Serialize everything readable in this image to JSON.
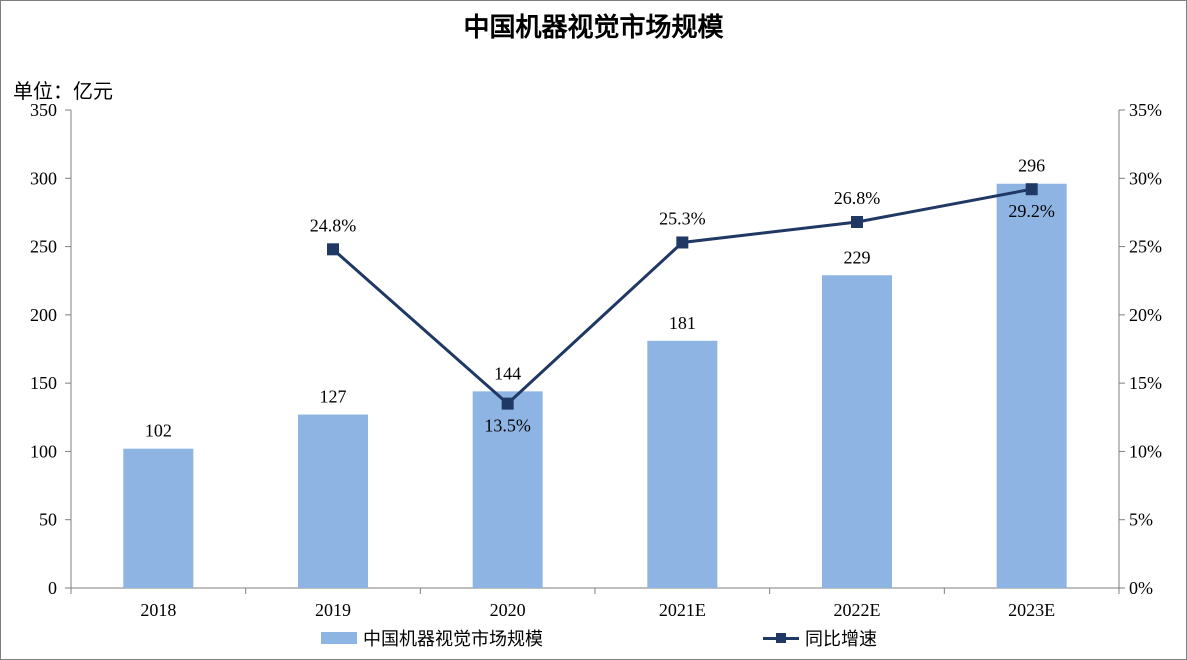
{
  "chart_data": {
    "type": "bar",
    "title": "中国机器视觉市场规模",
    "unit_label": "单位：亿元",
    "categories": [
      "2018",
      "2019",
      "2020",
      "2021E",
      "2022E",
      "2023E"
    ],
    "series": [
      {
        "name": "中国机器视觉市场规模",
        "type": "bar",
        "axis": "left",
        "color": "#8eb4e3",
        "values": [
          102,
          127,
          144,
          181,
          229,
          296
        ],
        "labels": [
          "102",
          "127",
          "144",
          "181",
          "229",
          "296"
        ]
      },
      {
        "name": "同比增速",
        "type": "line",
        "axis": "right",
        "color": "#1f3864",
        "values": [
          null,
          24.8,
          13.5,
          25.3,
          26.8,
          29.2
        ],
        "labels": [
          "",
          "24.8%",
          "13.5%",
          "25.3%",
          "26.8%",
          "29.2%"
        ]
      }
    ],
    "y_left": {
      "range": [
        0,
        350
      ],
      "ticks": [
        0,
        50,
        100,
        150,
        200,
        250,
        300,
        350
      ],
      "tick_labels": [
        "0",
        "50",
        "100",
        "150",
        "200",
        "250",
        "300",
        "350"
      ]
    },
    "y_right": {
      "range": [
        0,
        35
      ],
      "ticks": [
        0,
        5,
        10,
        15,
        20,
        25,
        30,
        35
      ],
      "tick_labels": [
        "0%",
        "5%",
        "10%",
        "15%",
        "20%",
        "25%",
        "30%",
        "35%"
      ]
    },
    "grid": false,
    "legend": "bottom"
  }
}
